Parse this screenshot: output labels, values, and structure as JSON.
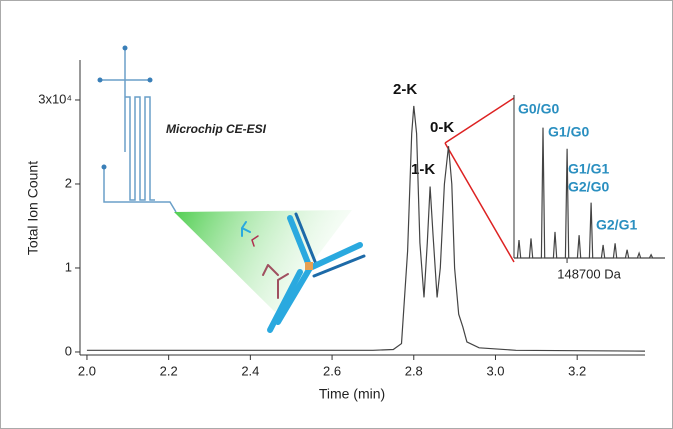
{
  "chart_data": [
    {
      "type": "line",
      "xlabel": "Time (min)",
      "ylabel": "Total Ion Count",
      "color": "#444444",
      "x": [
        2.0,
        2.7,
        2.75,
        2.77,
        2.785,
        2.795,
        2.8,
        2.807,
        2.815,
        2.825,
        2.833,
        2.84,
        2.847,
        2.857,
        2.865,
        2.875,
        2.885,
        2.893,
        2.9,
        2.91,
        2.92,
        2.93,
        2.96,
        3.05,
        3.366
      ],
      "values": [
        0.02,
        0.02,
        0.03,
        0.1,
        1.2,
        2.6,
        2.93,
        2.6,
        1.3,
        0.65,
        1.3,
        1.97,
        1.4,
        0.65,
        1.0,
        2.0,
        2.45,
        2.0,
        1.0,
        0.45,
        0.3,
        0.12,
        0.05,
        0.02,
        0.01
      ],
      "xlim": [
        1.983,
        3.366
      ],
      "ylim": [
        -0.036,
        3.476
      ],
      "xticks": [
        {
          "value": 2.0,
          "label": "2.0"
        },
        2.2,
        2.4,
        2.6,
        2.8,
        {
          "value": 3.0,
          "label": "3.0"
        },
        3.2
      ],
      "yticks": [
        0,
        1,
        2,
        {
          "value": 3,
          "label": "3x10⁴"
        }
      ],
      "annotations": [
        "2-K",
        "1-K",
        "0-K",
        "Microchip CE-ESI"
      ]
    },
    {
      "type": "line",
      "color": "#444444",
      "label_color": "#2a8fc0",
      "x": [
        148342,
        148365,
        148376,
        148387,
        148446,
        148457,
        148468,
        148527,
        148538,
        148549,
        148608,
        148619,
        148630,
        148689,
        148700,
        148711,
        148770,
        148781,
        148792,
        148851,
        148862,
        148873,
        148932,
        148943,
        148954,
        149013,
        149024,
        149035,
        149094,
        149105,
        149116,
        149175,
        149186,
        149197,
        149256,
        149267,
        149278,
        149361
      ],
      "values": [
        0,
        0,
        11,
        0,
        0,
        12,
        0,
        0,
        80,
        0,
        0,
        16,
        0,
        0,
        67,
        0,
        0,
        14,
        0,
        0,
        34,
        0,
        0,
        8,
        0,
        0,
        9,
        0,
        0,
        5,
        0,
        0,
        3,
        0,
        0,
        2,
        0,
        0
      ],
      "xlim": [
        148342,
        149361
      ],
      "ylim": [
        0,
        100
      ],
      "xticks": [
        {
          "value": 148700,
          "label": "148700 Da"
        }
      ],
      "annotations": [
        "G0/G0",
        "G1/G0",
        "G1/G1",
        "G2/G0",
        "G2/G1"
      ]
    }
  ]
}
